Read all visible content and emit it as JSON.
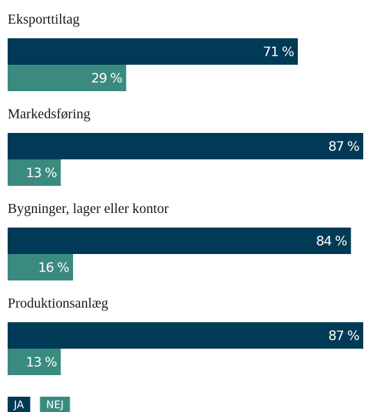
{
  "chart_data": {
    "type": "bar",
    "orientation": "horizontal",
    "categories": [
      "Eksporttiltag",
      "Markedsføring",
      "Bygninger, lager eller kontor",
      "Produktionsanlæg"
    ],
    "series": [
      {
        "name": "JA",
        "color": "#003a56",
        "values": [
          71,
          87,
          84,
          87
        ],
        "value_labels": [
          "71 %",
          "87 %",
          "84 %",
          "87 %"
        ]
      },
      {
        "name": "NEJ",
        "color": "#3a8a80",
        "values": [
          29,
          13,
          16,
          13
        ],
        "value_labels": [
          "29 %",
          "13 %",
          "16 %",
          "13 %"
        ]
      }
    ]
  }
}
